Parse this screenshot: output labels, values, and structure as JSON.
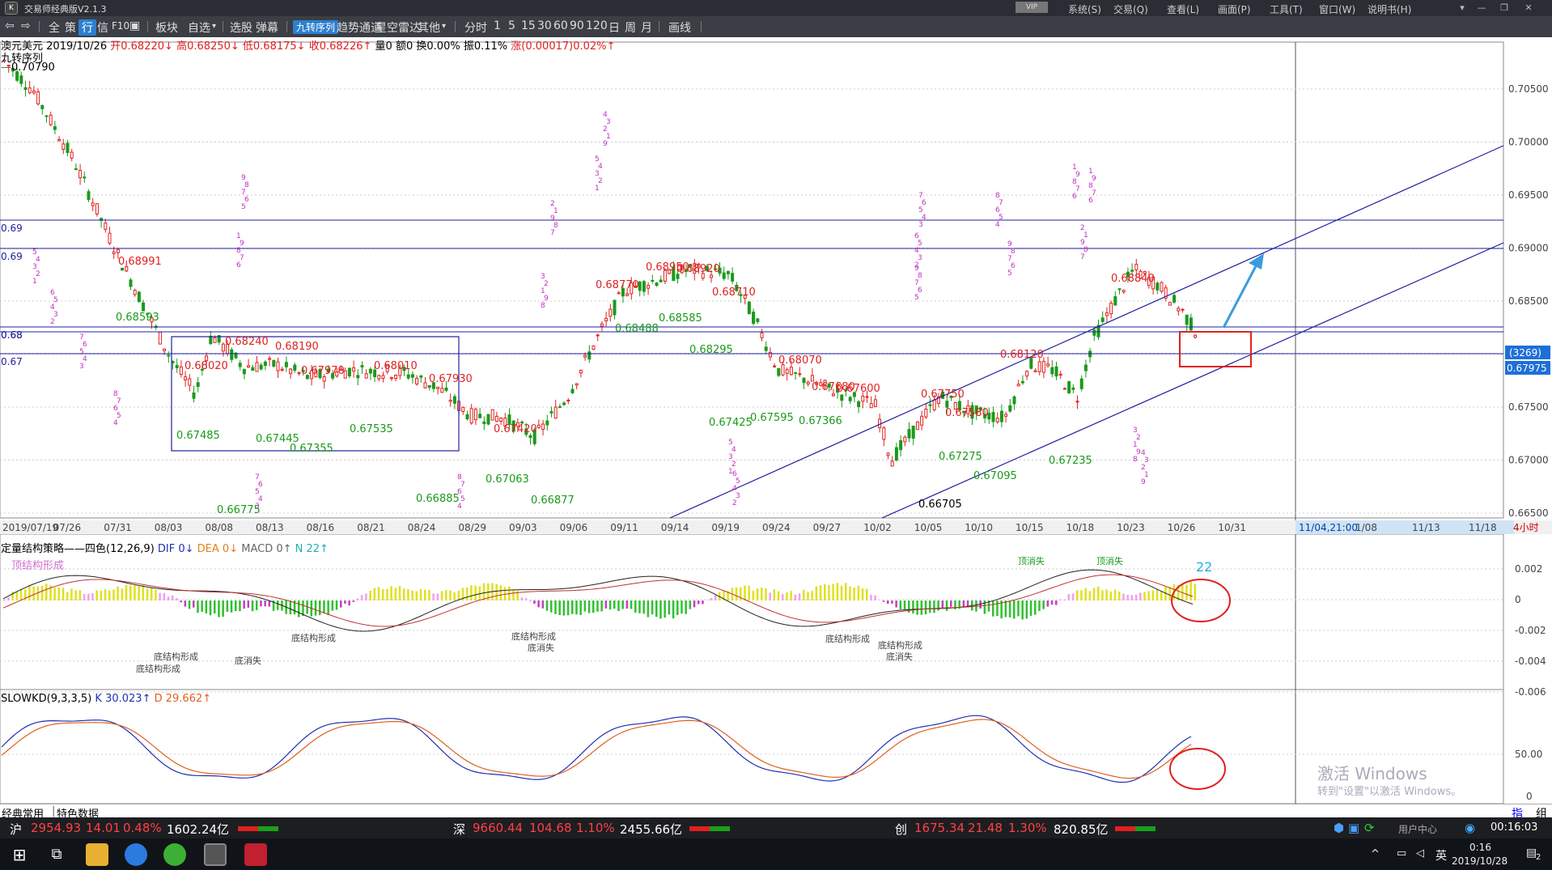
{
  "app": {
    "title": "交易师经典版V2.1.3",
    "vip": "VIP",
    "menus": [
      "系统(S)",
      "交易(Q)",
      "查看(L)",
      "画面(P)",
      "工具(T)",
      "窗口(W)",
      "说明书(H)"
    ],
    "window_buttons": [
      "▾",
      "—",
      "❐",
      "✕"
    ]
  },
  "toolbar": {
    "items": [
      "全",
      "策",
      "行",
      "信",
      "F10",
      "板块",
      "自选",
      "选股",
      "弹幕",
      "九转序列",
      "趋势通道",
      "星空雷达",
      "其他",
      "分时",
      "1",
      "5",
      "15",
      "30",
      "60",
      "90",
      "120",
      "日",
      "周",
      "月",
      "画线"
    ],
    "active": [
      "行",
      "九转序列"
    ]
  },
  "quote": {
    "name": "澳元美元",
    "date": "2019/10/26",
    "open_label": "开",
    "open": "0.68220",
    "high_label": "高",
    "high": "0.68250",
    "low_label": "低",
    "low": "0.68175",
    "close_label": "收",
    "close": "0.68226",
    "vol": "量0",
    "amt": "额0",
    "turnover": "换0.00%",
    "amplitude": "振0.11%",
    "change": "涨(0.00017)0.02%"
  },
  "indicator_main": {
    "name": "九转序列",
    "ref": "0.70790"
  },
  "price_axis": {
    "ticks": [
      "0.70500",
      "0.70000",
      "0.69500",
      "0.69000",
      "0.68500",
      "0.68000",
      "0.67500",
      "0.67000",
      "0.66500"
    ],
    "count_badge": "(3269)",
    "last_price": "0.67975"
  },
  "hline_labels": [
    "0.69",
    "0.69",
    "0.68",
    "0.68",
    "0.67"
  ],
  "date_axis": {
    "labels": [
      "2019/07/19",
      "07/26",
      "07/31",
      "08/03",
      "08/08",
      "08/13",
      "08/16",
      "08/21",
      "08/24",
      "08/29",
      "09/03",
      "09/06",
      "09/11",
      "09/14",
      "09/19",
      "09/24",
      "09/27",
      "10/02",
      "10/05",
      "10/10",
      "10/15",
      "10/18",
      "10/23",
      "10/26",
      "10/31",
      "11/04,21:00",
      "1/08",
      "11/13",
      "11/18"
    ],
    "period": "4小时"
  },
  "price_labels": [
    {
      "t": "0.68991",
      "c": "red"
    },
    {
      "t": "0.68593",
      "c": "green"
    },
    {
      "t": "0.68240",
      "c": "red"
    },
    {
      "t": "0.68190",
      "c": "red"
    },
    {
      "t": "0.68020",
      "c": "red"
    },
    {
      "t": "0.67970",
      "c": "red"
    },
    {
      "t": "0.68010",
      "c": "red"
    },
    {
      "t": "0.67930",
      "c": "red"
    },
    {
      "t": "0.67485",
      "c": "green"
    },
    {
      "t": "0.67445",
      "c": "green"
    },
    {
      "t": "0.67355",
      "c": "green"
    },
    {
      "t": "0.67535",
      "c": "green"
    },
    {
      "t": "0.66775",
      "c": "green"
    },
    {
      "t": "0.66885",
      "c": "green"
    },
    {
      "t": "0.67420",
      "c": "red"
    },
    {
      "t": "0.67063",
      "c": "green"
    },
    {
      "t": "0.66877",
      "c": "green"
    },
    {
      "t": "0.68770",
      "c": "red"
    },
    {
      "t": "0.68950",
      "c": "red"
    },
    {
      "t": "0.68920",
      "c": "red"
    },
    {
      "t": "0.68710",
      "c": "red"
    },
    {
      "t": "0.68488",
      "c": "green"
    },
    {
      "t": "0.68585",
      "c": "green"
    },
    {
      "t": "0.68295",
      "c": "green"
    },
    {
      "t": "0.68070",
      "c": "red"
    },
    {
      "t": "0.67680",
      "c": "red"
    },
    {
      "t": "0.67600",
      "c": "red"
    },
    {
      "t": "0.67595",
      "c": "green"
    },
    {
      "t": "0.67425",
      "c": "green"
    },
    {
      "t": "0.67366",
      "c": "green"
    },
    {
      "t": "0.67750",
      "c": "red"
    },
    {
      "t": "0.67580",
      "c": "red"
    },
    {
      "t": "0.67275",
      "c": "green"
    },
    {
      "t": "0.67095",
      "c": "green"
    },
    {
      "t": "0.68120",
      "c": "red"
    },
    {
      "t": "0.67235",
      "c": "green"
    },
    {
      "t": "0.68840",
      "c": "red"
    },
    {
      "t": "0.66705",
      "c": "black"
    }
  ],
  "macd": {
    "title": "定量结构策略——四色(12,26,9)",
    "dif": "DIF 0↓",
    "dea": "DEA 0↓",
    "macd": "MACD 0↑",
    "n": "N 22↑",
    "top_label": "顶结构形成",
    "ticks": [
      "0.002",
      "0",
      "-0.002",
      "-0.004",
      "-0.006"
    ],
    "marker": "22",
    "bottom_labels": [
      "底结构形成",
      "底消失"
    ],
    "top_labels": [
      "顶消失"
    ]
  },
  "kd": {
    "title": "SLOWKD(9,3,3,5)",
    "k": "K 30.023↑",
    "d": "D 29.662↑",
    "ticks": [
      "50.00",
      "0"
    ]
  },
  "watermark": {
    "line1": "激活 Windows",
    "line2": "转到\"设置\"以激活 Windows。"
  },
  "sheet_tabs": [
    "经典常用",
    "特色数据"
  ],
  "corner_buttons": [
    "指",
    "组"
  ],
  "status": {
    "sh_label": "沪",
    "sh": "2954.93",
    "sh_ch": "14.01",
    "sh_pct": "0.48%",
    "sh_amt": "1602.24亿",
    "sz_label": "深",
    "sz": "9660.44",
    "sz_ch": "104.68",
    "sz_pct": "1.10%",
    "sz_amt": "2455.66亿",
    "cy_label": "创",
    "cy": "1675.34",
    "cy_ch": "21.48",
    "cy_pct": "1.30%",
    "cy_amt": "820.85亿",
    "user": "用户中心",
    "time": "00:16:03"
  },
  "taskbar": {
    "time": "0:16",
    "date": "2019/10/28",
    "lang": "英",
    "notif": "2"
  },
  "colors": {
    "up": "#e02020",
    "down": "#1a9a1a",
    "level": "#2020a0",
    "seq": "#c030c0"
  }
}
